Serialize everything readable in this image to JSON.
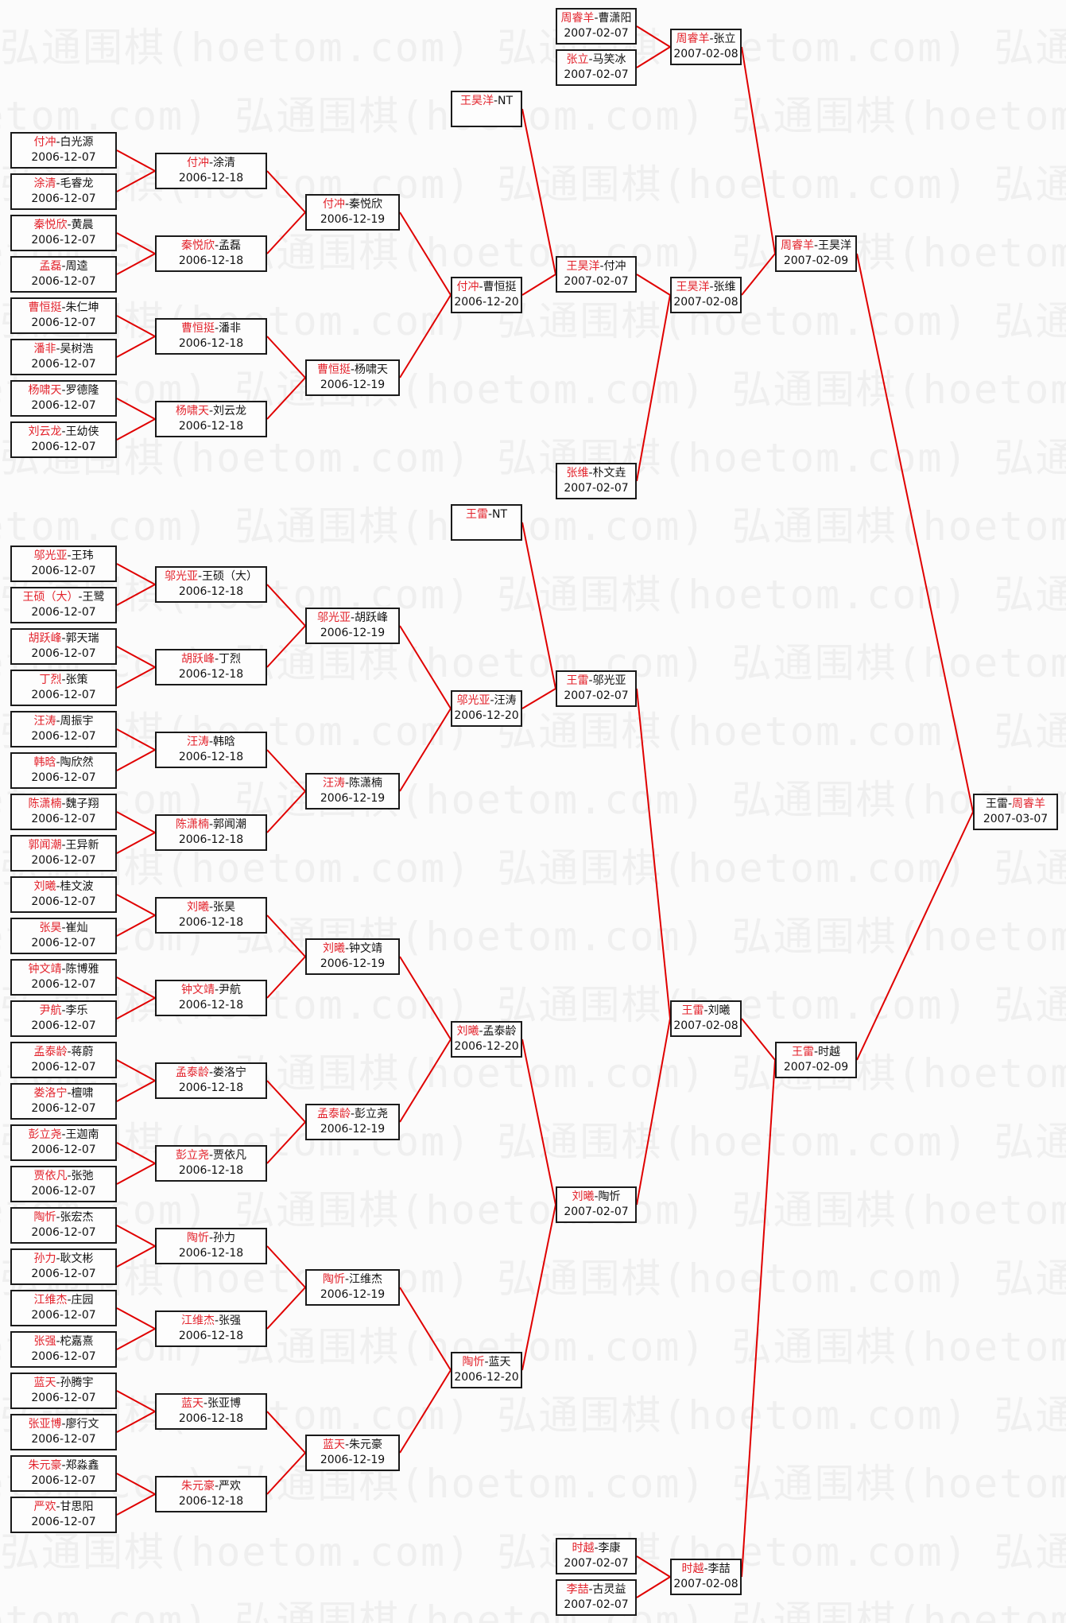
{
  "watermark": "弘通围棋(hoetom.com)",
  "sep": "-",
  "colors": {
    "winner": "#e3232c",
    "line": "#e00000",
    "border": "#1a1a1a"
  },
  "rounds": [
    [
      {
        "p1": "付冲",
        "p2": "白光源",
        "red": 1,
        "date": "2006-12-07"
      },
      {
        "p1": "涂清",
        "p2": "毛睿龙",
        "red": 1,
        "date": "2006-12-07"
      },
      {
        "p1": "秦悦欣",
        "p2": "黄晨",
        "red": 1,
        "date": "2006-12-07"
      },
      {
        "p1": "孟磊",
        "p2": "周逵",
        "red": 1,
        "date": "2006-12-07"
      },
      {
        "p1": "曹恒挺",
        "p2": "朱仁坤",
        "red": 1,
        "date": "2006-12-07"
      },
      {
        "p1": "潘非",
        "p2": "吴树浩",
        "red": 1,
        "date": "2006-12-07"
      },
      {
        "p1": "杨啸天",
        "p2": "罗德隆",
        "red": 1,
        "date": "2006-12-07"
      },
      {
        "p1": "刘云龙",
        "p2": "王幼侠",
        "red": 1,
        "date": "2006-12-07"
      },
      {
        "p1": "邬光亚",
        "p2": "王玮",
        "red": 1,
        "date": "2006-12-07"
      },
      {
        "p1": "王硕（大）",
        "p2": "王鹭",
        "red": 1,
        "date": "2006-12-07"
      },
      {
        "p1": "胡跃峰",
        "p2": "郭天瑞",
        "red": 1,
        "date": "2006-12-07"
      },
      {
        "p1": "丁烈",
        "p2": "张策",
        "red": 1,
        "date": "2006-12-07"
      },
      {
        "p1": "汪涛",
        "p2": "周振宇",
        "red": 1,
        "date": "2006-12-07"
      },
      {
        "p1": "韩晗",
        "p2": "陶欣然",
        "red": 1,
        "date": "2006-12-07"
      },
      {
        "p1": "陈潇楠",
        "p2": "魏子翔",
        "red": 1,
        "date": "2006-12-07"
      },
      {
        "p1": "郭闻潮",
        "p2": "王异新",
        "red": 1,
        "date": "2006-12-07"
      },
      {
        "p1": "刘曦",
        "p2": "桂文波",
        "red": 1,
        "date": "2006-12-07"
      },
      {
        "p1": "张昊",
        "p2": "崔灿",
        "red": 1,
        "date": "2006-12-07"
      },
      {
        "p1": "钟文靖",
        "p2": "陈博雅",
        "red": 1,
        "date": "2006-12-07"
      },
      {
        "p1": "尹航",
        "p2": "李乐",
        "red": 1,
        "date": "2006-12-07"
      },
      {
        "p1": "孟泰龄",
        "p2": "蒋蔚",
        "red": 1,
        "date": "2006-12-07"
      },
      {
        "p1": "娄洛宁",
        "p2": "檀啸",
        "red": 1,
        "date": "2006-12-07"
      },
      {
        "p1": "彭立尧",
        "p2": "王迦南",
        "red": 1,
        "date": "2006-12-07"
      },
      {
        "p1": "贾依凡",
        "p2": "张弛",
        "red": 1,
        "date": "2006-12-07"
      },
      {
        "p1": "陶忻",
        "p2": "张宏杰",
        "red": 1,
        "date": "2006-12-07"
      },
      {
        "p1": "孙力",
        "p2": "耿文彬",
        "red": 1,
        "date": "2006-12-07"
      },
      {
        "p1": "江维杰",
        "p2": "庄园",
        "red": 1,
        "date": "2006-12-07"
      },
      {
        "p1": "张强",
        "p2": "柁嘉熹",
        "red": 1,
        "date": "2006-12-07"
      },
      {
        "p1": "蓝天",
        "p2": "孙腾宇",
        "red": 1,
        "date": "2006-12-07"
      },
      {
        "p1": "张亚博",
        "p2": "廖行文",
        "red": 1,
        "date": "2006-12-07"
      },
      {
        "p1": "朱元豪",
        "p2": "郑淼鑫",
        "red": 1,
        "date": "2006-12-07"
      },
      {
        "p1": "严欢",
        "p2": "甘思阳",
        "red": 1,
        "date": "2006-12-07"
      }
    ],
    [
      {
        "p1": "付冲",
        "p2": "涂清",
        "red": 1,
        "date": "2006-12-18"
      },
      {
        "p1": "秦悦欣",
        "p2": "孟磊",
        "red": 1,
        "date": "2006-12-18"
      },
      {
        "p1": "曹恒挺",
        "p2": "潘非",
        "red": 1,
        "date": "2006-12-18"
      },
      {
        "p1": "杨啸天",
        "p2": "刘云龙",
        "red": 1,
        "date": "2006-12-18"
      },
      {
        "p1": "邬光亚",
        "p2": "王硕（大）",
        "red": 1,
        "date": "2006-12-18"
      },
      {
        "p1": "胡跃峰",
        "p2": "丁烈",
        "red": 1,
        "date": "2006-12-18"
      },
      {
        "p1": "汪涛",
        "p2": "韩晗",
        "red": 1,
        "date": "2006-12-18"
      },
      {
        "p1": "陈潇楠",
        "p2": "郭闻潮",
        "red": 1,
        "date": "2006-12-18"
      },
      {
        "p1": "刘曦",
        "p2": "张昊",
        "red": 1,
        "date": "2006-12-18"
      },
      {
        "p1": "钟文靖",
        "p2": "尹航",
        "red": 1,
        "date": "2006-12-18"
      },
      {
        "p1": "孟泰龄",
        "p2": "娄洛宁",
        "red": 1,
        "date": "2006-12-18"
      },
      {
        "p1": "彭立尧",
        "p2": "贾依凡",
        "red": 1,
        "date": "2006-12-18"
      },
      {
        "p1": "陶忻",
        "p2": "孙力",
        "red": 1,
        "date": "2006-12-18"
      },
      {
        "p1": "江维杰",
        "p2": "张强",
        "red": 1,
        "date": "2006-12-18"
      },
      {
        "p1": "蓝天",
        "p2": "张亚博",
        "red": 1,
        "date": "2006-12-18"
      },
      {
        "p1": "朱元豪",
        "p2": "严欢",
        "red": 1,
        "date": "2006-12-18"
      }
    ],
    [
      {
        "p1": "付冲",
        "p2": "秦悦欣",
        "red": 1,
        "date": "2006-12-19"
      },
      {
        "p1": "曹恒挺",
        "p2": "杨啸天",
        "red": 1,
        "date": "2006-12-19"
      },
      {
        "p1": "邬光亚",
        "p2": "胡跃峰",
        "red": 1,
        "date": "2006-12-19"
      },
      {
        "p1": "汪涛",
        "p2": "陈潇楠",
        "red": 1,
        "date": "2006-12-19"
      },
      {
        "p1": "刘曦",
        "p2": "钟文靖",
        "red": 1,
        "date": "2006-12-19"
      },
      {
        "p1": "孟泰龄",
        "p2": "彭立尧",
        "red": 1,
        "date": "2006-12-19"
      },
      {
        "p1": "陶忻",
        "p2": "江维杰",
        "red": 1,
        "date": "2006-12-19"
      },
      {
        "p1": "蓝天",
        "p2": "朱元豪",
        "red": 1,
        "date": "2006-12-19"
      }
    ],
    [
      {
        "p1": "王昊洋",
        "p2": "NT",
        "red": 1,
        "date": ""
      },
      {
        "p1": "付冲",
        "p2": "曹恒挺",
        "red": 1,
        "date": "2006-12-20"
      },
      {
        "p1": "王雷",
        "p2": "NT",
        "red": 1,
        "date": ""
      },
      {
        "p1": "邬光亚",
        "p2": "汪涛",
        "red": 1,
        "date": "2006-12-20"
      },
      {
        "p1": "刘曦",
        "p2": "孟泰龄",
        "red": 1,
        "date": "2006-12-20"
      },
      {
        "p1": "陶忻",
        "p2": "蓝天",
        "red": 1,
        "date": "2006-12-20"
      }
    ],
    [
      {
        "p1": "周睿羊",
        "p2": "曹潇阳",
        "red": 1,
        "date": "2007-02-07"
      },
      {
        "p1": "张立",
        "p2": "马笑冰",
        "red": 1,
        "date": "2007-02-07"
      },
      {
        "p1": "王昊洋",
        "p2": "付冲",
        "red": 1,
        "date": "2007-02-07"
      },
      {
        "p1": "张维",
        "p2": "朴文垚",
        "red": 1,
        "date": "2007-02-07"
      },
      {
        "p1": "王雷",
        "p2": "邬光亚",
        "red": 1,
        "date": "2007-02-07"
      },
      {
        "p1": "刘曦",
        "p2": "陶忻",
        "red": 1,
        "date": "2007-02-07"
      },
      {
        "p1": "时越",
        "p2": "李康",
        "red": 1,
        "date": "2007-02-07"
      },
      {
        "p1": "李喆",
        "p2": "古灵益",
        "red": 1,
        "date": "2007-02-07"
      }
    ],
    [
      {
        "p1": "周睿羊",
        "p2": "张立",
        "red": 1,
        "date": "2007-02-08"
      },
      {
        "p1": "王昊洋",
        "p2": "张维",
        "red": 1,
        "date": "2007-02-08"
      },
      {
        "p1": "王雷",
        "p2": "刘曦",
        "red": 1,
        "date": "2007-02-08"
      },
      {
        "p1": "时越",
        "p2": "李喆",
        "red": 1,
        "date": "2007-02-08"
      }
    ],
    [
      {
        "p1": "周睿羊",
        "p2": "王昊洋",
        "red": 1,
        "date": "2007-02-09"
      },
      {
        "p1": "王雷",
        "p2": "时越",
        "red": 1,
        "date": "2007-02-09"
      }
    ],
    [
      {
        "p1": "王雷",
        "p2": "周睿羊",
        "red": 2,
        "date": "2007-03-07"
      }
    ]
  ]
}
